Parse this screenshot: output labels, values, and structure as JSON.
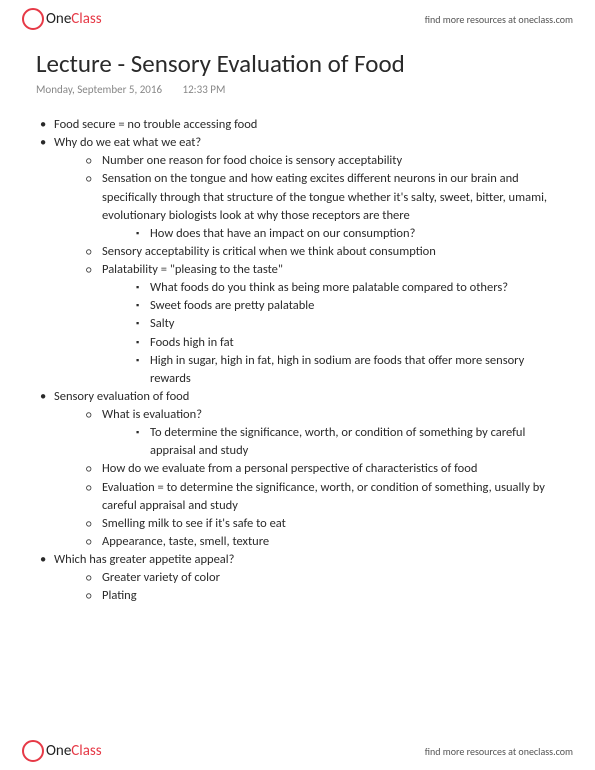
{
  "brand": {
    "one": "One",
    "class": "Class",
    "tagline": "find more resources at oneclass.com"
  },
  "title": "Lecture - Sensory Evaluation of Food",
  "meta": {
    "date": "Monday, September 5, 2016",
    "time": "12:33 PM"
  },
  "notes": [
    {
      "t": "Food secure = no trouble accessing food"
    },
    {
      "t": "Why do we eat what we eat?",
      "c": [
        {
          "t": "Number one reason for food choice is sensory acceptability"
        },
        {
          "t": "Sensation on the tongue and how eating excites different neurons in our brain and specifically through that structure of the tongue whether it's salty, sweet, bitter, umami, evolutionary biologists look at why those receptors are there",
          "c": [
            {
              "t": "How does that have an impact on our consumption?"
            }
          ]
        },
        {
          "t": "Sensory acceptability is critical when we think about consumption"
        },
        {
          "t": "Palatability = \"pleasing to the taste\"",
          "c": [
            {
              "t": "What foods do you think as being more palatable compared to others?"
            },
            {
              "t": "Sweet foods are pretty palatable"
            },
            {
              "t": "Salty"
            },
            {
              "t": "Foods high in fat"
            },
            {
              "t": "High in sugar, high in fat, high in sodium are foods that offer more sensory rewards"
            }
          ]
        }
      ]
    },
    {
      "t": "Sensory evaluation of food",
      "c": [
        {
          "t": "What is evaluation?",
          "c": [
            {
              "t": "To determine the significance, worth, or condition of something by careful appraisal and study"
            }
          ]
        },
        {
          "t": "How do we evaluate from a personal perspective of characteristics of food"
        },
        {
          "t": "Evaluation = to determine the significance, worth, or condition of something, usually by careful appraisal and study"
        },
        {
          "t": "Smelling milk to see if it's safe to eat"
        },
        {
          "t": "Appearance, taste, smell, texture"
        }
      ]
    },
    {
      "t": "Which has greater appetite appeal?",
      "c": [
        {
          "t": "Greater variety of color"
        },
        {
          "t": "Plating"
        }
      ]
    }
  ]
}
